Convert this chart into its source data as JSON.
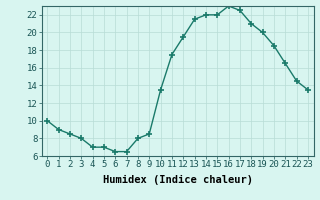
{
  "x": [
    0,
    1,
    2,
    3,
    4,
    5,
    6,
    7,
    8,
    9,
    10,
    11,
    12,
    13,
    14,
    15,
    16,
    17,
    18,
    19,
    20,
    21,
    22,
    23
  ],
  "y": [
    10,
    9,
    8.5,
    8,
    7,
    7,
    6.5,
    6.5,
    8,
    8.5,
    13.5,
    17.5,
    19.5,
    21.5,
    22,
    22,
    23,
    22.5,
    21,
    20,
    18.5,
    16.5,
    14.5,
    13.5
  ],
  "line_color": "#1a7a6a",
  "marker_color": "#1a7a6a",
  "bg_color": "#d8f5f0",
  "grid_color": "#b8dcd6",
  "xlabel": "Humidex (Indice chaleur)",
  "ylim": [
    6,
    23
  ],
  "xlim": [
    -0.5,
    23.5
  ],
  "yticks": [
    6,
    8,
    10,
    12,
    14,
    16,
    18,
    20,
    22
  ],
  "xticks": [
    0,
    1,
    2,
    3,
    4,
    5,
    6,
    7,
    8,
    9,
    10,
    11,
    12,
    13,
    14,
    15,
    16,
    17,
    18,
    19,
    20,
    21,
    22,
    23
  ],
  "xtick_labels": [
    "0",
    "1",
    "2",
    "3",
    "4",
    "5",
    "6",
    "7",
    "8",
    "9",
    "10",
    "11",
    "12",
    "13",
    "14",
    "15",
    "16",
    "17",
    "18",
    "19",
    "20",
    "21",
    "22",
    "23"
  ],
  "xlabel_fontsize": 7.5,
  "tick_fontsize": 6.5,
  "linewidth": 1.0,
  "markersize": 4,
  "spine_color": "#336666"
}
